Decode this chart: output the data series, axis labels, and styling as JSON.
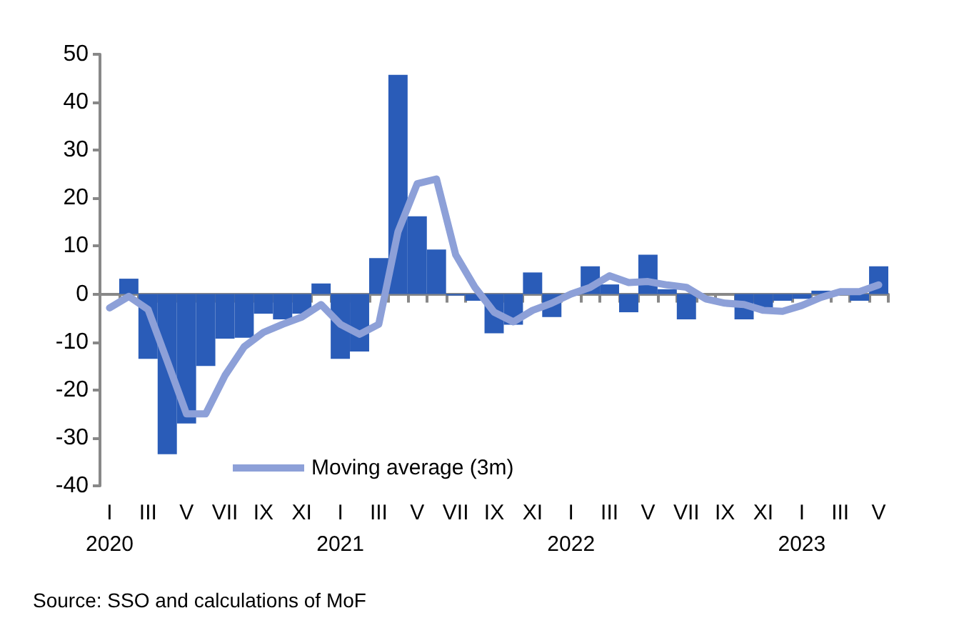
{
  "chart_data": {
    "type": "bar",
    "categories": [
      "I\n2020",
      null,
      "III",
      null,
      "V",
      null,
      "VII",
      null,
      "IX",
      null,
      "XI",
      null,
      "I\n2021",
      null,
      "III",
      null,
      "V",
      null,
      "VII",
      null,
      "IX",
      null,
      "XI",
      null,
      "I\n2022",
      null,
      "III",
      null,
      "V",
      null,
      "VII",
      null,
      "IX",
      null,
      "XI",
      null,
      "I\n2023",
      null,
      "III",
      null,
      "V"
    ],
    "series": [
      {
        "color": "#2a5cb8",
        "values": [
          0,
          3.2,
          -13.5,
          -33.4,
          -27,
          -15,
          -9.3,
          -9.1,
          -4.1,
          -5.3,
          -4.1,
          2.2,
          -13.5,
          -12,
          7.5,
          45.7,
          16.2,
          9.3,
          -0.3,
          -1.4,
          -8.2,
          -6.4,
          4.5,
          -4.8,
          0,
          5.8,
          2,
          -3.8,
          8.2,
          1,
          -5.3,
          null,
          0,
          -5.3,
          -2.9,
          -1.4,
          -1,
          0.7,
          null,
          -1.4,
          5.8
        ]
      },
      {
        "type": "line",
        "name": "Moving average (3m)",
        "color": "#8da0d8",
        "values": [
          -2.9,
          -0.5,
          -3.2,
          -14,
          -25,
          -25,
          -17,
          -11,
          -8,
          -6.3,
          -4.8,
          -2.2,
          -6.3,
          -8.4,
          -6.3,
          13,
          23,
          24,
          8.2,
          1.4,
          -3.8,
          -5.8,
          -3.4,
          -1.9,
          0,
          1.4,
          3.8,
          2.4,
          2.6,
          1.9,
          1.4,
          -1,
          -1.9,
          -2.2,
          -3.4,
          -3.6,
          -2.4,
          -0.7,
          0.5,
          0.5,
          1.9
        ]
      }
    ],
    "ylim": [
      -40,
      50
    ],
    "yticks": [
      -40,
      -30,
      -20,
      -10,
      0,
      10,
      20,
      30,
      40,
      50
    ],
    "legend": "bottom",
    "marker": "none",
    "line_style": "solid",
    "annotations": [
      "Source: SSO and calculations of MoF"
    ]
  }
}
